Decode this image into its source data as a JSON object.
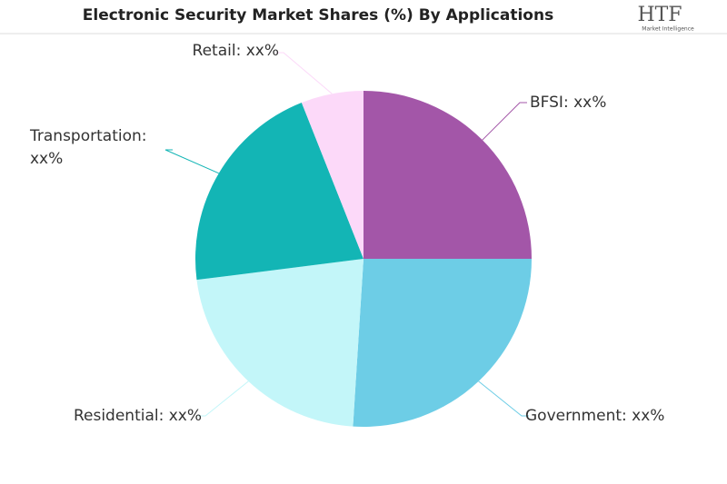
{
  "chart_data": {
    "type": "pie",
    "title": "Electronic Security Market Shares (%) By Applications",
    "logo": {
      "mark": "HTF",
      "tagline": "Market Intelligence"
    },
    "categories": [
      "BFSI",
      "Government",
      "Residential",
      "Transportation",
      "Retail"
    ],
    "labels": [
      [
        "BFSI: xx%"
      ],
      [
        "Government: xx%"
      ],
      [
        "Residential: xx%"
      ],
      [
        "Transportation:",
        "xx%"
      ],
      [
        "Retail: xx%"
      ]
    ],
    "values": [
      25,
      26,
      22,
      21,
      6
    ],
    "colors": [
      "#a356a8",
      "#6dcde6",
      "#c3f6f9",
      "#13b5b5",
      "#fcd9f9"
    ]
  }
}
